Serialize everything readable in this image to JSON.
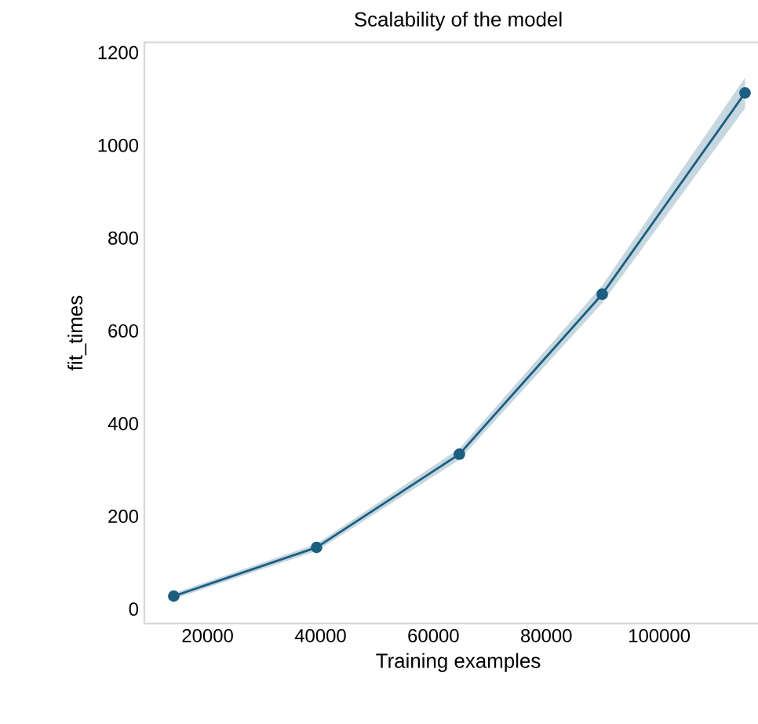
{
  "chart_data": {
    "type": "line",
    "title": "Scalability of the model",
    "xlabel": "Training examples",
    "ylabel": "fit_times",
    "x": [
      14000,
      39300,
      64600,
      89900,
      115200
    ],
    "series": [
      {
        "color": "#1b5e80",
        "values": [
          28,
          133,
          334,
          679,
          1113
        ],
        "lower": [
          22,
          125,
          322,
          660,
          1080
        ],
        "upper": [
          34,
          141,
          346,
          698,
          1146
        ]
      }
    ],
    "xlim": [
      8800,
      120000
    ],
    "ylim": [
      -31,
      1222
    ],
    "xticks": [
      20000,
      40000,
      60000,
      80000,
      100000
    ],
    "yticks": [
      0,
      200,
      400,
      600,
      800,
      1000,
      1200
    ],
    "grid": false,
    "marker": "circle",
    "line_style": "solid"
  }
}
